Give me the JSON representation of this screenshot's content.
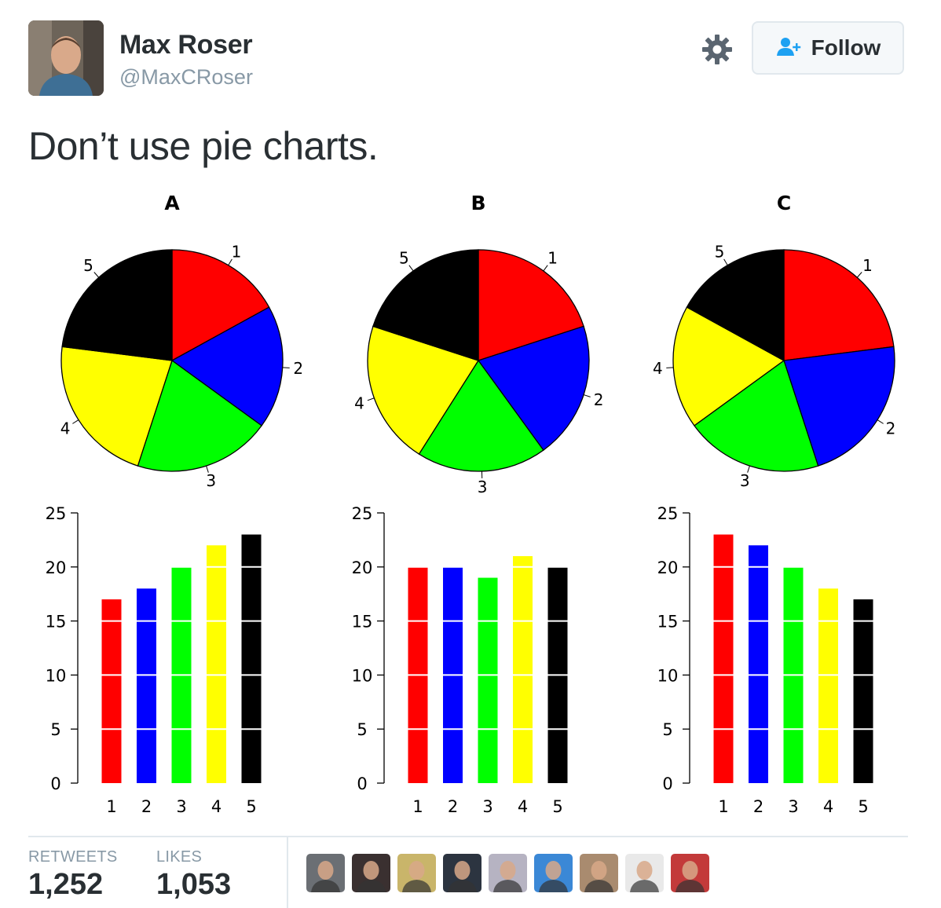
{
  "header": {
    "name": "Max Roser",
    "handle": "@MaxCRoser",
    "follow_label": "Follow"
  },
  "tweet": {
    "text": "Don’t use pie charts."
  },
  "stats": {
    "retweets_label": "RETWEETS",
    "retweets_value": "1,252",
    "likes_label": "LIKES",
    "likes_value": "1,053"
  },
  "icons": {
    "settings": "gear-icon",
    "follow": "add-user-icon"
  },
  "colors": {
    "red": "#ff0000",
    "blue": "#0000ff",
    "green": "#00ff00",
    "yellow": "#ffff00",
    "black": "#000000",
    "follow_icon": "#1da1f2"
  },
  "liker_colors": [
    "#6b6f74",
    "#3a3030",
    "#c9b56a",
    "#2c3440",
    "#b6b3c2",
    "#3b88d6",
    "#a98b6f",
    "#e9e9e9",
    "#c33a3a"
  ],
  "chart_data": [
    {
      "type": "pie",
      "title": "A",
      "categories": [
        "1",
        "2",
        "3",
        "4",
        "5"
      ],
      "values": [
        17,
        18,
        20,
        22,
        23
      ],
      "colors": [
        "#ff0000",
        "#0000ff",
        "#00ff00",
        "#ffff00",
        "#000000"
      ]
    },
    {
      "type": "pie",
      "title": "B",
      "categories": [
        "1",
        "2",
        "3",
        "4",
        "5"
      ],
      "values": [
        20,
        20,
        19,
        21,
        20
      ],
      "colors": [
        "#ff0000",
        "#0000ff",
        "#00ff00",
        "#ffff00",
        "#000000"
      ]
    },
    {
      "type": "pie",
      "title": "C",
      "categories": [
        "1",
        "2",
        "3",
        "4",
        "5"
      ],
      "values": [
        23,
        22,
        20,
        18,
        17
      ],
      "colors": [
        "#ff0000",
        "#0000ff",
        "#00ff00",
        "#ffff00",
        "#000000"
      ]
    },
    {
      "type": "bar",
      "categories": [
        "1",
        "2",
        "3",
        "4",
        "5"
      ],
      "values": [
        17,
        18,
        20,
        22,
        23
      ],
      "ylim": [
        0,
        25
      ],
      "yticks": [
        "0",
        "5",
        "10",
        "15",
        "20",
        "25"
      ],
      "colors": [
        "#ff0000",
        "#0000ff",
        "#00ff00",
        "#ffff00",
        "#000000"
      ],
      "grid": true
    },
    {
      "type": "bar",
      "categories": [
        "1",
        "2",
        "3",
        "4",
        "5"
      ],
      "values": [
        20,
        20,
        19,
        21,
        20
      ],
      "ylim": [
        0,
        25
      ],
      "yticks": [
        "0",
        "5",
        "10",
        "15",
        "20",
        "25"
      ],
      "colors": [
        "#ff0000",
        "#0000ff",
        "#00ff00",
        "#ffff00",
        "#000000"
      ],
      "grid": true
    },
    {
      "type": "bar",
      "categories": [
        "1",
        "2",
        "3",
        "4",
        "5"
      ],
      "values": [
        23,
        22,
        20,
        18,
        17
      ],
      "ylim": [
        0,
        25
      ],
      "yticks": [
        "0",
        "5",
        "10",
        "15",
        "20",
        "25"
      ],
      "colors": [
        "#ff0000",
        "#0000ff",
        "#00ff00",
        "#ffff00",
        "#000000"
      ],
      "grid": true
    }
  ]
}
